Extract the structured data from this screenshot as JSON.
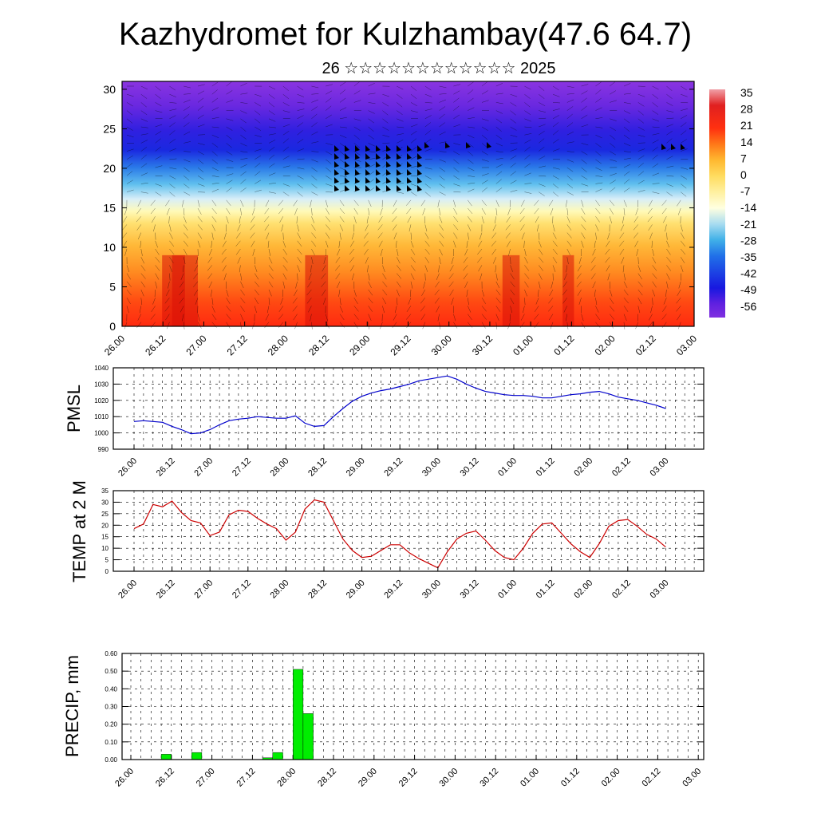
{
  "title": "Kazhydromet for Kulzhambay(47.6 64.7)",
  "subtitle": "26 ☆☆☆☆☆☆☆☆☆☆☆☆ 2025",
  "time_ticks": [
    "26.00",
    "26.12",
    "27.00",
    "27.12",
    "28.00",
    "28.12",
    "29.00",
    "29.12",
    "30.00",
    "30.12",
    "01.00",
    "01.12",
    "02.00",
    "02.12",
    "03.00"
  ],
  "chart_data": [
    {
      "type": "heatmap",
      "name": "cross-section",
      "ylim": [
        0,
        31
      ],
      "y_ticks": [
        0,
        5,
        10,
        15,
        20,
        25,
        30
      ],
      "colorbar": {
        "labels": [
          "35",
          "28",
          "21",
          "14",
          "7",
          "0",
          "-7",
          "-14",
          "-21",
          "-28",
          "-35",
          "-42",
          "-49",
          "-56"
        ],
        "stops": [
          {
            "v": 38,
            "c": "#f0a0a8"
          },
          {
            "v": 31,
            "c": "#e02020"
          },
          {
            "v": 21,
            "c": "#ff3010"
          },
          {
            "v": 14,
            "c": "#ff7818"
          },
          {
            "v": 7,
            "c": "#ffb830"
          },
          {
            "v": 0,
            "c": "#ffdc60"
          },
          {
            "v": -7,
            "c": "#fff0a0"
          },
          {
            "v": -14,
            "c": "#ffffe0"
          },
          {
            "v": -21,
            "c": "#a8dcf0"
          },
          {
            "v": -28,
            "c": "#40b0e8"
          },
          {
            "v": -35,
            "c": "#2070e8"
          },
          {
            "v": -49,
            "c": "#1818e0"
          },
          {
            "v": -56,
            "c": "#6020e0"
          },
          {
            "v": -62,
            "c": "#8030e0"
          }
        ]
      }
    },
    {
      "type": "line",
      "ylabel": "PMSL",
      "ylim": [
        990,
        1040
      ],
      "y_ticks": [
        "990",
        "1000",
        "1010",
        "1020",
        "1030",
        "1040"
      ],
      "color": "#0000cc",
      "x": [
        0,
        1,
        2,
        3,
        4,
        5,
        6,
        7,
        8,
        9,
        10,
        11,
        12,
        13,
        14,
        15,
        16,
        17,
        18,
        19,
        20,
        21,
        22,
        23,
        24,
        25,
        26,
        27,
        28,
        29,
        30,
        31,
        32,
        33,
        34,
        35,
        36,
        37,
        38,
        39,
        40,
        41,
        42,
        43,
        44,
        45,
        46,
        47,
        48,
        49,
        50,
        51,
        52,
        53,
        54,
        55,
        56
      ],
      "values": [
        1007,
        1007.5,
        1007,
        1006.5,
        1004,
        1002,
        999.5,
        1000,
        1002,
        1005,
        1007.5,
        1008.5,
        1009,
        1010,
        1009.5,
        1009,
        1009,
        1010.5,
        1006,
        1004,
        1004.5,
        1010,
        1015,
        1019.5,
        1022.5,
        1024.5,
        1026,
        1027,
        1028.5,
        1030,
        1032,
        1033,
        1034,
        1035,
        1033,
        1030,
        1027.5,
        1025.5,
        1024.5,
        1023.5,
        1023,
        1023,
        1022.5,
        1021.5,
        1021.5,
        1022.5,
        1023.5,
        1024,
        1025,
        1025.5,
        1024,
        1022,
        1021,
        1020,
        1018.5,
        1017,
        1015
      ]
    },
    {
      "type": "line",
      "ylabel": "TEMP at 2 M",
      "ylim": [
        0,
        35
      ],
      "y_ticks": [
        "0",
        "5",
        "10",
        "15",
        "20",
        "25",
        "30",
        "35"
      ],
      "color": "#cc0000",
      "x": [
        0,
        1,
        2,
        3,
        4,
        5,
        6,
        7,
        8,
        9,
        10,
        11,
        12,
        13,
        14,
        15,
        16,
        17,
        18,
        19,
        20,
        21,
        22,
        23,
        24,
        25,
        26,
        27,
        28,
        29,
        30,
        31,
        32,
        33,
        34,
        35,
        36,
        37,
        38,
        39,
        40,
        41,
        42,
        43,
        44,
        45,
        46,
        47,
        48,
        49,
        50,
        51,
        52,
        53,
        54,
        55,
        56
      ],
      "values": [
        18.5,
        20.5,
        29,
        28,
        30.5,
        25.5,
        22,
        21,
        15.5,
        17,
        24.5,
        26.5,
        26,
        23,
        20.5,
        18.5,
        13.5,
        17,
        27,
        31,
        30,
        22,
        14,
        9,
        6,
        6.5,
        9,
        11.5,
        11.5,
        8,
        5.5,
        3.5,
        1.5,
        8.5,
        14,
        16.5,
        17.5,
        13.5,
        9,
        6,
        5,
        10,
        16.5,
        20.5,
        21,
        16.5,
        12,
        8.5,
        6,
        12,
        19.5,
        22,
        22.5,
        19.5,
        16,
        14,
        10.5
      ]
    },
    {
      "type": "bar",
      "ylabel": "PRECIP, mm",
      "ylim": [
        0,
        0.6
      ],
      "y_ticks": [
        "0.00",
        "0.10",
        "0.20",
        "0.30",
        "0.40",
        "0.50",
        "0.60"
      ],
      "color": "#00ee00",
      "x": [
        3,
        6,
        13,
        14,
        16,
        17
      ],
      "values": [
        0.03,
        0.04,
        0.01,
        0.04,
        0.51,
        0.26
      ]
    }
  ]
}
